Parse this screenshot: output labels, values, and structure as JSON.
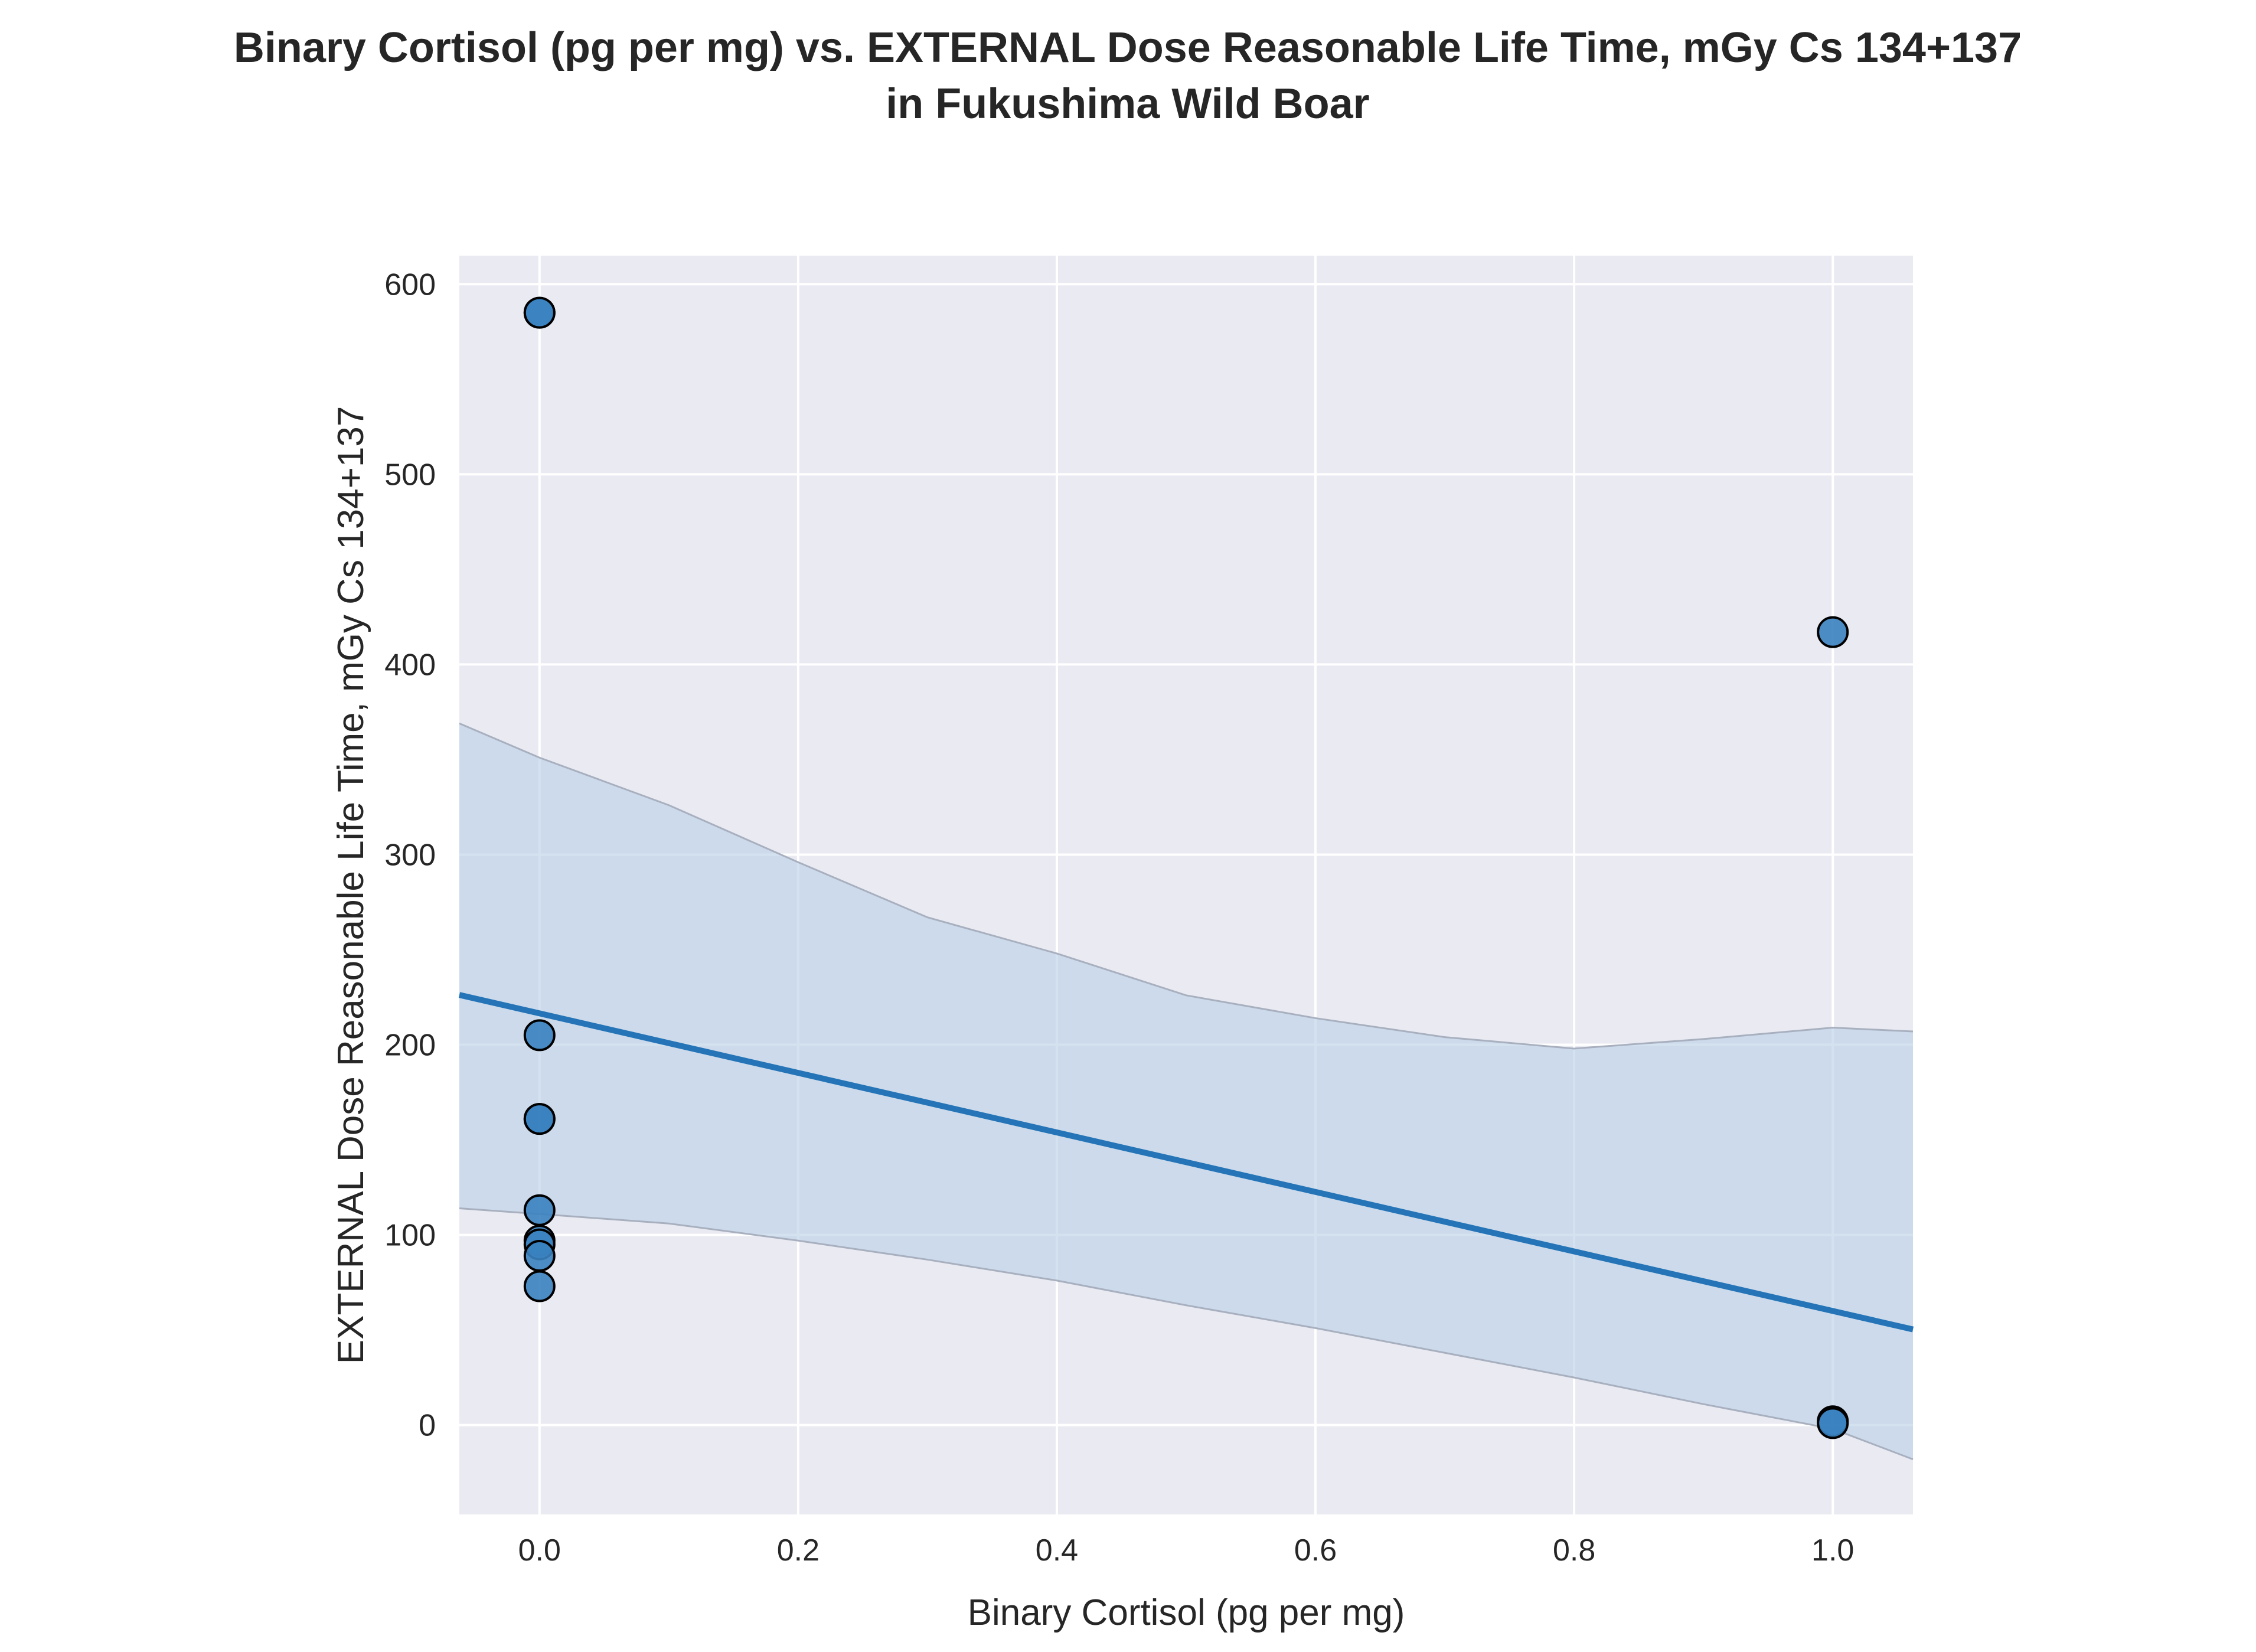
{
  "chart_data": {
    "type": "scatter",
    "title": "Binary Cortisol (pg per mg) vs. EXTERNAL Dose Reasonable Life Time, mGy Cs 134+137",
    "subtitle": "in Fukushima Wild Boar",
    "xlabel": "Binary Cortisol (pg per mg)",
    "ylabel": "EXTERNAL Dose Reasonable Life Time, mGy Cs 134+137",
    "xlim": [
      -0.062,
      1.062
    ],
    "ylim": [
      -47,
      615
    ],
    "xticks": [
      "0.0",
      "0.2",
      "0.4",
      "0.6",
      "0.8",
      "1.0"
    ],
    "yticks": [
      "0",
      "100",
      "200",
      "300",
      "400",
      "500",
      "600"
    ],
    "xtick_values": [
      0,
      0.2,
      0.4,
      0.6,
      0.8,
      1.0
    ],
    "ytick_values": [
      0,
      100,
      200,
      300,
      400,
      500,
      600
    ],
    "grid": true,
    "points": [
      {
        "x": 0,
        "y": 585
      },
      {
        "x": 0,
        "y": 585
      },
      {
        "x": 0,
        "y": 205
      },
      {
        "x": 0,
        "y": 161
      },
      {
        "x": 0,
        "y": 161
      },
      {
        "x": 0,
        "y": 113
      },
      {
        "x": 0,
        "y": 97
      },
      {
        "x": 0,
        "y": 95
      },
      {
        "x": 0,
        "y": 89
      },
      {
        "x": 0,
        "y": 73
      },
      {
        "x": 1,
        "y": 417
      },
      {
        "x": 1,
        "y": 2
      },
      {
        "x": 1,
        "y": 1
      }
    ],
    "regression": {
      "intercept": 216.5,
      "slope": -156.5
    },
    "ci_upper": [
      [
        -0.062,
        369
      ],
      [
        0.0,
        351
      ],
      [
        0.1,
        326
      ],
      [
        0.2,
        296
      ],
      [
        0.3,
        267
      ],
      [
        0.4,
        248
      ],
      [
        0.5,
        226
      ],
      [
        0.6,
        214
      ],
      [
        0.7,
        204
      ],
      [
        0.8,
        198
      ],
      [
        0.9,
        203
      ],
      [
        1.0,
        209
      ],
      [
        1.062,
        207
      ]
    ],
    "ci_lower": [
      [
        -0.062,
        114
      ],
      [
        0.0,
        111
      ],
      [
        0.1,
        106
      ],
      [
        0.2,
        97
      ],
      [
        0.3,
        87
      ],
      [
        0.4,
        76
      ],
      [
        0.5,
        63
      ],
      [
        0.6,
        51
      ],
      [
        0.7,
        38
      ],
      [
        0.8,
        25
      ],
      [
        0.9,
        11
      ],
      [
        1.0,
        -2
      ],
      [
        1.062,
        -18
      ]
    ],
    "colors": {
      "background": "#eaeaf2",
      "grid": "#ffffff",
      "point_fill": "#3a82c0",
      "point_edge": "#000000",
      "line": "#2474b7",
      "band": "#b7cee6",
      "band_edge": "#a8b0bf"
    }
  }
}
